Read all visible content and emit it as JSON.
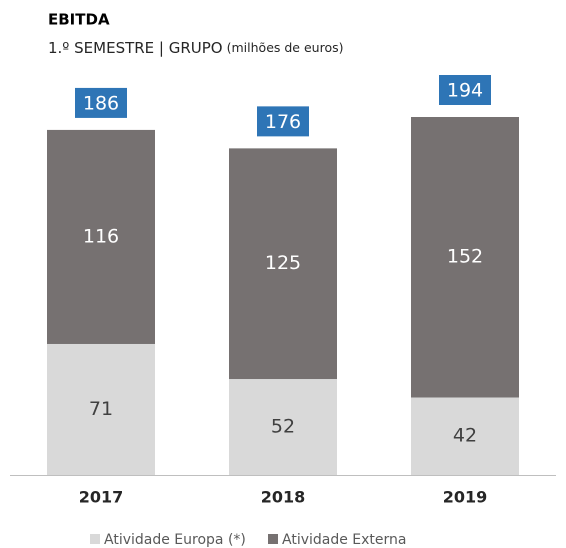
{
  "chart_data": {
    "type": "stacked_bar",
    "title": "EBITDA",
    "subtitle": "1.º SEMESTRE | GRUPO",
    "unit": "(milhões de euros)",
    "categories": [
      "2017",
      "2018",
      "2019"
    ],
    "series": [
      {
        "name": "Atividade Europa (*)",
        "color": "#d9d9d9",
        "label_color": "#404040",
        "values": [
          71,
          52,
          42
        ]
      },
      {
        "name": "Atividade Externa",
        "color": "#767171",
        "label_color": "#ffffff",
        "values": [
          116,
          125,
          152
        ]
      }
    ],
    "totals": [
      186,
      176,
      194
    ],
    "total_color": "#2e75b6"
  }
}
